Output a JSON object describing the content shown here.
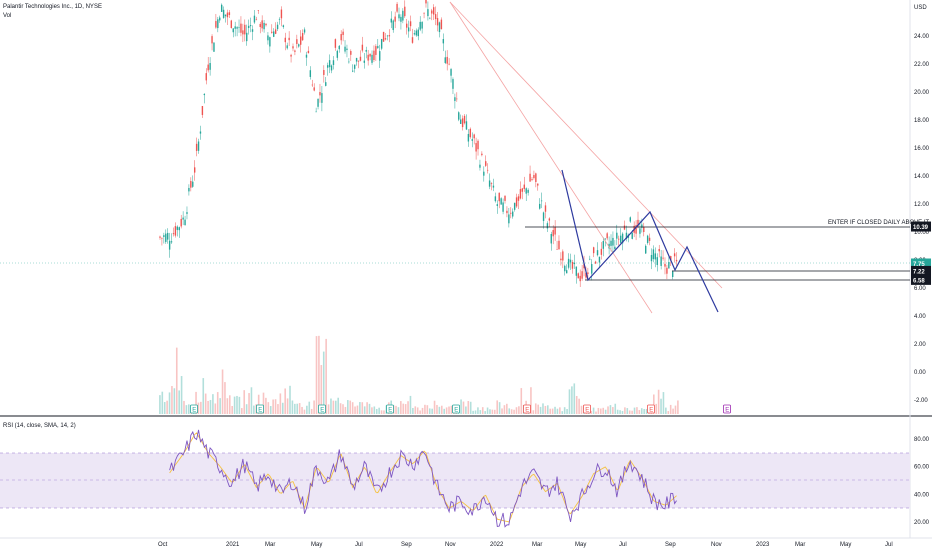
{
  "header": {
    "symbol": "Palantir Technologies Inc., 1D, NYSE",
    "volume_label": "Vol"
  },
  "price_axis": {
    "currency": "USD",
    "ticks": [
      "24.00",
      "22.00",
      "20.00",
      "18.00",
      "16.00",
      "14.00",
      "12.00",
      "10.00",
      "8.00",
      "6.00",
      "4.00",
      "2.00",
      "0.00",
      "-2.00"
    ]
  },
  "rsi_axis": {
    "ticks": [
      "80.00",
      "60.00",
      "40.00",
      "20.00"
    ]
  },
  "time_axis": {
    "labels": [
      "Oct",
      "2021",
      "Mar",
      "May",
      "Jul",
      "Sep",
      "Nov",
      "2022",
      "Mar",
      "May",
      "Jul",
      "Sep",
      "Nov",
      "2023",
      "Mar",
      "May",
      "Jul"
    ]
  },
  "annotation": {
    "text": "ENTER IF CLOSED DAILY ABOVE IT"
  },
  "price_badges": [
    {
      "text": "10.39",
      "bg": "#131722"
    },
    {
      "text": "7.75",
      "bg": "#26a69a"
    },
    {
      "text": "7.22",
      "bg": "#131722"
    },
    {
      "text": "6.58",
      "bg": "#131722"
    }
  ],
  "earnings_markers": [
    {
      "text": "E",
      "color": "#26a69a"
    },
    {
      "text": "E",
      "color": "#26a69a"
    },
    {
      "text": "E",
      "color": "#26a69a"
    },
    {
      "text": "E",
      "color": "#26a69a"
    },
    {
      "text": "E",
      "color": "#26a69a"
    },
    {
      "text": "E",
      "color": "#ef5350"
    },
    {
      "text": "E",
      "color": "#ef5350"
    },
    {
      "text": "E",
      "color": "#ef5350"
    },
    {
      "text": "E",
      "color": "#9c27b0"
    }
  ],
  "rsi": {
    "label": "RSI (14, close, SMA, 14, 2)",
    "overbought": 70,
    "oversold": 30
  },
  "colors": {
    "up": "#26a69a",
    "down": "#ef5350",
    "pattern": "#1f2d8a",
    "trend": "#f4a3a3",
    "rsi": "#7e57c2",
    "rsi_ma": "#f5c242",
    "rsi_band": "#ede7f6"
  },
  "chart_data": {
    "type": "candlestick",
    "title": "Palantir Technologies Inc., 1D, NYSE",
    "ylim": [
      -2.5,
      26
    ],
    "close_path": [
      [
        0,
        9.6
      ],
      [
        5,
        9.8
      ],
      [
        10,
        11
      ],
      [
        15,
        15
      ],
      [
        20,
        22
      ],
      [
        25,
        26
      ],
      [
        30,
        25
      ],
      [
        35,
        24
      ],
      [
        40,
        25.5
      ],
      [
        45,
        24
      ],
      [
        50,
        25
      ],
      [
        55,
        22.5
      ],
      [
        60,
        24
      ],
      [
        65,
        19
      ],
      [
        70,
        22
      ],
      [
        75,
        24
      ],
      [
        80,
        22
      ],
      [
        85,
        22.5
      ],
      [
        90,
        23
      ],
      [
        95,
        24.5
      ],
      [
        100,
        25.5
      ],
      [
        105,
        24
      ],
      [
        110,
        26
      ],
      [
        115,
        25
      ],
      [
        120,
        22
      ],
      [
        125,
        18
      ],
      [
        130,
        16.5
      ],
      [
        135,
        14.5
      ],
      [
        140,
        12
      ],
      [
        145,
        11.5
      ],
      [
        150,
        12.5
      ],
      [
        155,
        14
      ],
      [
        160,
        11
      ],
      [
        165,
        9
      ],
      [
        170,
        7.5
      ],
      [
        175,
        6.8
      ],
      [
        180,
        8
      ],
      [
        185,
        9
      ],
      [
        190,
        9.5
      ],
      [
        195,
        10.5
      ],
      [
        200,
        10
      ],
      [
        205,
        8.5
      ],
      [
        210,
        7.5
      ],
      [
        215,
        7.75
      ]
    ],
    "horizontal_levels": [
      10.39,
      7.22,
      6.58
    ],
    "volume_relative": [
      0.3,
      0.8,
      0.2,
      0.4,
      0.3,
      0.5,
      0.2,
      0.3,
      0.25,
      0.2,
      0.35,
      0.2,
      0.15,
      0.9,
      0.3,
      0.2,
      0.15,
      0.2,
      0.1,
      0.15,
      0.2,
      0.1,
      0.15,
      0.1,
      0.12,
      0.2,
      0.1,
      0.08,
      0.15,
      0.1,
      0.3,
      0.12,
      0.1,
      0.08,
      0.4,
      0.1,
      0.08,
      0.12,
      0.1,
      0.08,
      0.1,
      0.3,
      0.1
    ],
    "rsi_path": [
      [
        0,
        45
      ],
      [
        5,
        58
      ],
      [
        10,
        70
      ],
      [
        15,
        85
      ],
      [
        20,
        70
      ],
      [
        25,
        60
      ],
      [
        30,
        48
      ],
      [
        35,
        62
      ],
      [
        40,
        45
      ],
      [
        45,
        55
      ],
      [
        50,
        40
      ],
      [
        55,
        50
      ],
      [
        60,
        30
      ],
      [
        65,
        60
      ],
      [
        70,
        48
      ],
      [
        75,
        70
      ],
      [
        80,
        45
      ],
      [
        85,
        60
      ],
      [
        90,
        40
      ],
      [
        95,
        55
      ],
      [
        100,
        68
      ],
      [
        105,
        62
      ],
      [
        110,
        72
      ],
      [
        115,
        45
      ],
      [
        120,
        30
      ],
      [
        125,
        35
      ],
      [
        130,
        28
      ],
      [
        135,
        40
      ],
      [
        140,
        22
      ],
      [
        145,
        20
      ],
      [
        150,
        45
      ],
      [
        155,
        55
      ],
      [
        160,
        42
      ],
      [
        165,
        48
      ],
      [
        170,
        25
      ],
      [
        175,
        38
      ],
      [
        180,
        55
      ],
      [
        185,
        60
      ],
      [
        190,
        42
      ],
      [
        195,
        65
      ],
      [
        200,
        52
      ],
      [
        205,
        35
      ],
      [
        210,
        32
      ],
      [
        215,
        40
      ]
    ],
    "xlim": [
      0,
      215
    ]
  }
}
